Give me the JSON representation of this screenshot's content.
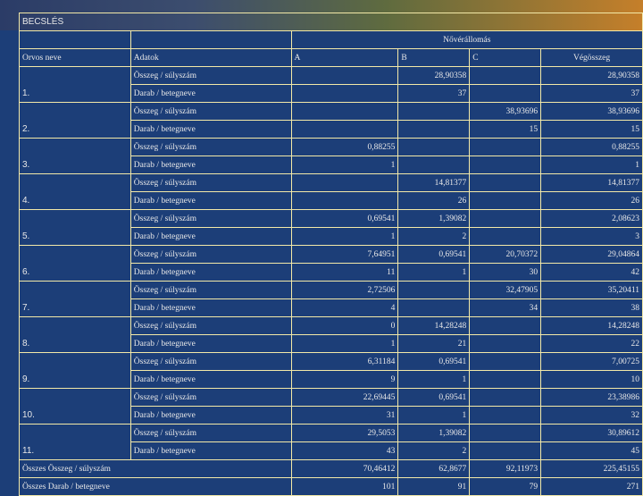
{
  "title": "BECSLÉS",
  "group_header": "Nővérállomás",
  "columns": {
    "doctor": "Orvos neve",
    "data": "Adatok",
    "a": "A",
    "b": "B",
    "c": "C",
    "total": "Végösszeg"
  },
  "sum_label": "Összeg / súlyszám",
  "count_label": "Darab / betegneve",
  "doctors": [
    {
      "no": "1.",
      "sum": {
        "a": "",
        "b": "28,90358",
        "c": "",
        "total": "28,90358"
      },
      "count": {
        "a": "",
        "b": "37",
        "c": "",
        "total": "37"
      }
    },
    {
      "no": "2.",
      "sum": {
        "a": "",
        "b": "",
        "c": "38,93696",
        "total": "38,93696"
      },
      "count": {
        "a": "",
        "b": "",
        "c": "15",
        "total": "15"
      }
    },
    {
      "no": "3.",
      "sum": {
        "a": "0,88255",
        "b": "",
        "c": "",
        "total": "0,88255"
      },
      "count": {
        "a": "1",
        "b": "",
        "c": "",
        "total": "1"
      }
    },
    {
      "no": "4.",
      "sum": {
        "a": "",
        "b": "14,81377",
        "c": "",
        "total": "14,81377"
      },
      "count": {
        "a": "",
        "b": "26",
        "c": "",
        "total": "26"
      }
    },
    {
      "no": "5.",
      "sum": {
        "a": "0,69541",
        "b": "1,39082",
        "c": "",
        "total": "2,08623"
      },
      "count": {
        "a": "1",
        "b": "2",
        "c": "",
        "total": "3"
      }
    },
    {
      "no": "6.",
      "sum": {
        "a": "7,64951",
        "b": "0,69541",
        "c": "20,70372",
        "total": "29,04864"
      },
      "count": {
        "a": "11",
        "b": "1",
        "c": "30",
        "total": "42"
      }
    },
    {
      "no": "7.",
      "sum": {
        "a": "2,72506",
        "b": "",
        "c": "32,47905",
        "total": "35,20411"
      },
      "count": {
        "a": "4",
        "b": "",
        "c": "34",
        "total": "38"
      }
    },
    {
      "no": "8.",
      "sum": {
        "a": "0",
        "b": "14,28248",
        "c": "",
        "total": "14,28248"
      },
      "count": {
        "a": "1",
        "b": "21",
        "c": "",
        "total": "22"
      }
    },
    {
      "no": "9.",
      "sum": {
        "a": "6,31184",
        "b": "0,69541",
        "c": "",
        "total": "7,00725"
      },
      "count": {
        "a": "9",
        "b": "1",
        "c": "",
        "total": "10"
      }
    },
    {
      "no": "10.",
      "sum": {
        "a": "22,69445",
        "b": "0,69541",
        "c": "",
        "total": "23,38986"
      },
      "count": {
        "a": "31",
        "b": "1",
        "c": "",
        "total": "32"
      }
    },
    {
      "no": "11.",
      "sum": {
        "a": "29,5053",
        "b": "1,39082",
        "c": "",
        "total": "30,89612"
      },
      "count": {
        "a": "43",
        "b": "2",
        "c": "",
        "total": "45"
      }
    }
  ],
  "totals": {
    "sum_label": "Összes Összeg / súlyszám",
    "count_label": "Összes Darab / betegneve",
    "sum": {
      "a": "70,46412",
      "b": "62,8677",
      "c": "92,11973",
      "total": "225,45155"
    },
    "count": {
      "a": "101",
      "b": "91",
      "c": "79",
      "total": "271"
    }
  },
  "colors": {
    "background": "#1c3e78",
    "grid": "#f3e9a8",
    "text": "#e8e8e8"
  }
}
